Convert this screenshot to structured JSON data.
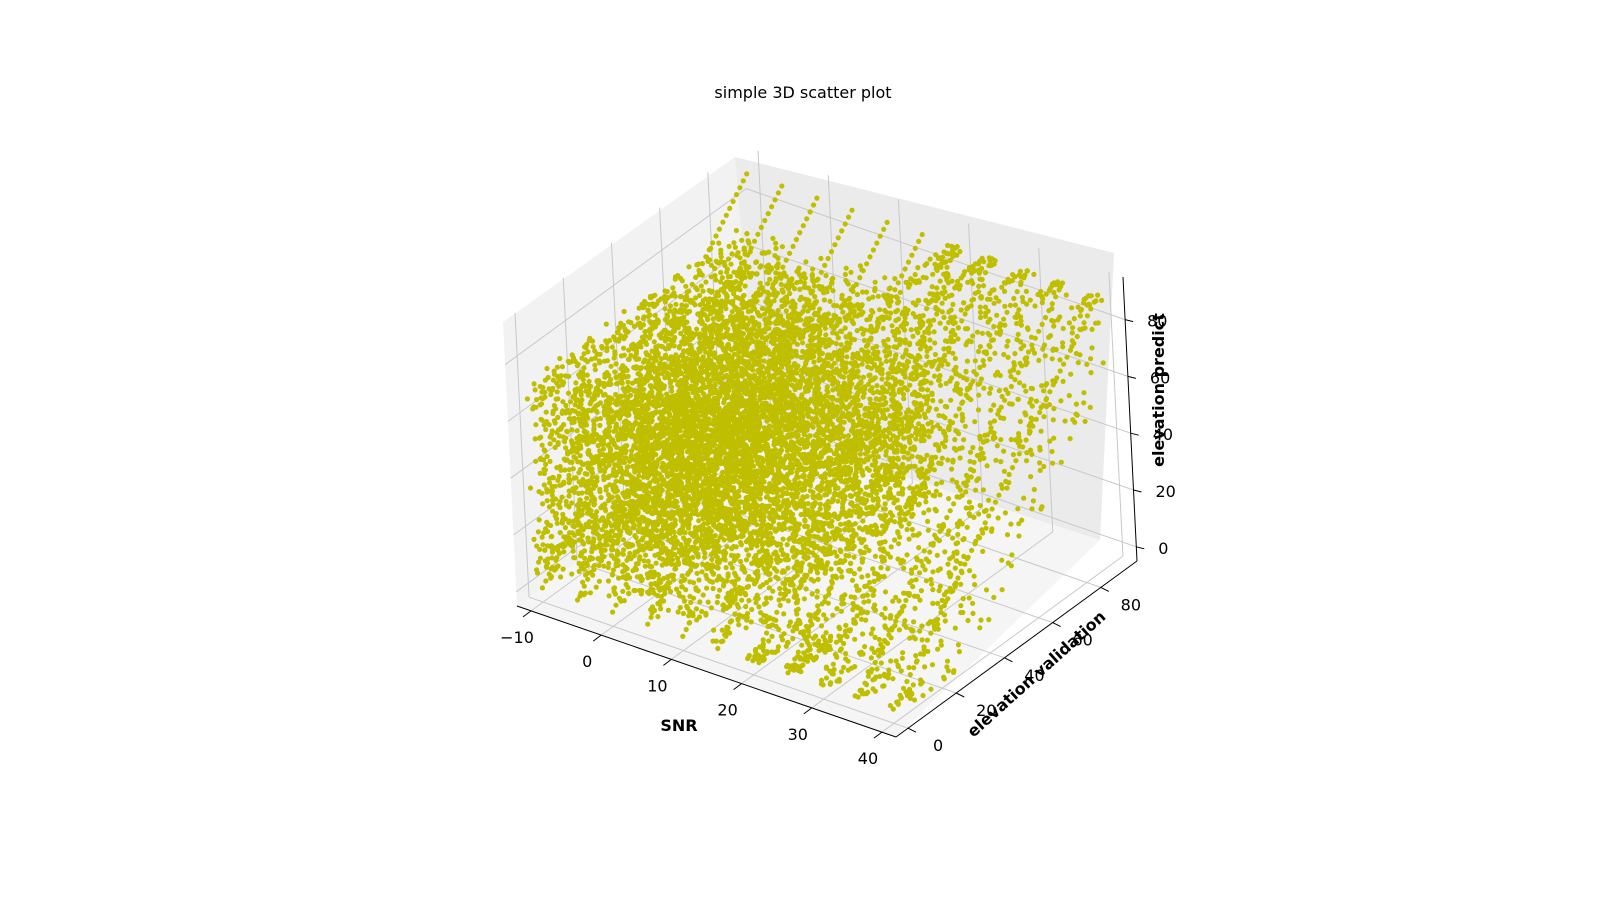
{
  "chart_data": {
    "type": "scatter",
    "subtype": "3d",
    "title": "simple 3D scatter plot",
    "xlabel": "SNR",
    "ylabel": "elevation validation",
    "zlabel": "elevation predict",
    "x_ticks": [
      "−10",
      "0",
      "10",
      "20",
      "30",
      "40"
    ],
    "y_ticks": [
      "0",
      "20",
      "40",
      "60",
      "80"
    ],
    "z_ticks": [
      "0",
      "20",
      "40",
      "60",
      "80"
    ],
    "xlim": [
      -12,
      42
    ],
    "ylim": [
      -5,
      95
    ],
    "zlim": [
      -5,
      95
    ],
    "point_color": "#bfbf00",
    "grid": true,
    "series": [
      {
        "snr_levels": [
          -10,
          -5,
          0,
          5,
          10,
          15,
          20,
          25,
          30,
          35,
          40
        ],
        "density_by_level": [
          "very dense",
          "very dense",
          "very dense",
          "very dense",
          "dense",
          "dense",
          "medium",
          "medium",
          "sparse",
          "sparse",
          "sparse"
        ],
        "elevation_range": [
          0,
          90
        ]
      }
    ]
  }
}
